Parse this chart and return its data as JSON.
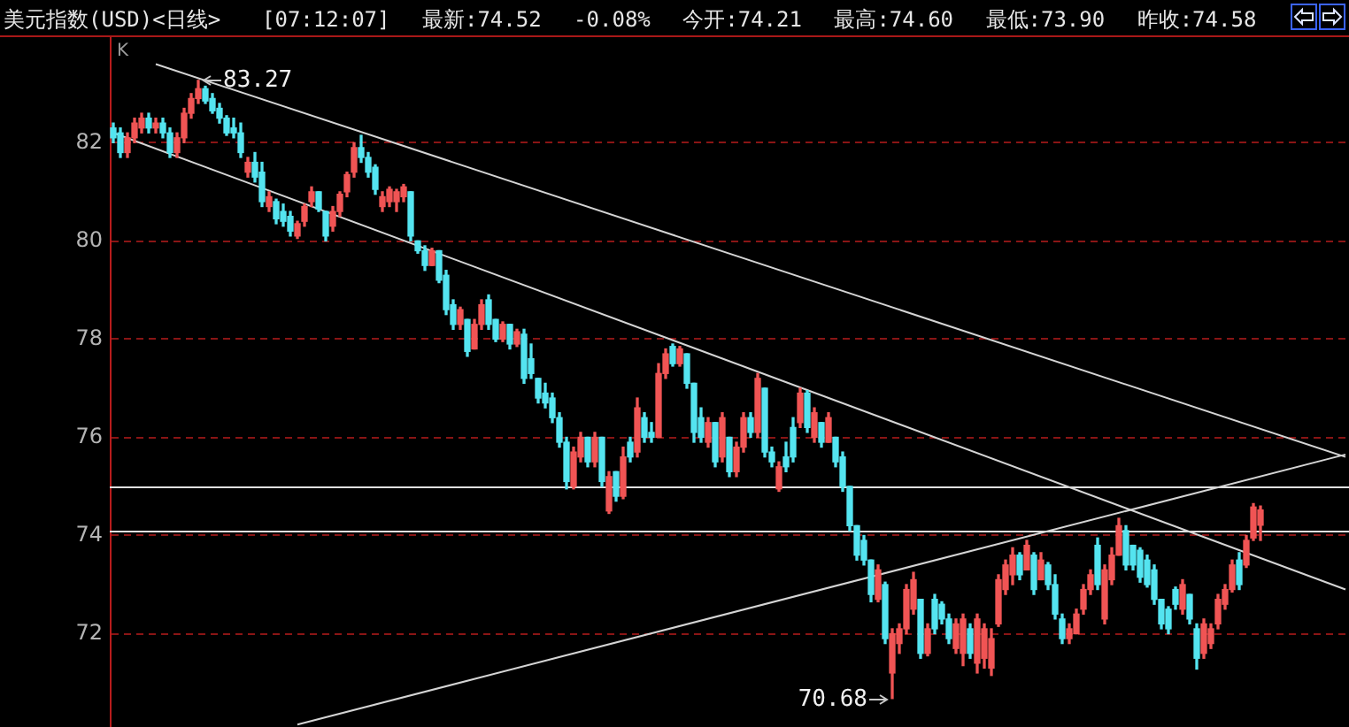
{
  "chart_data": {
    "type": "candlestick",
    "title": "美元指数(USD)<日线>",
    "subtitle": "[07:12:07] 最新:74.52 -0.08% 今开:74.21 最高:74.60 最低:73.90 昨收:74.58",
    "categories": [
      null,
      null,
      null,
      null,
      null,
      null,
      null,
      null,
      null,
      null,
      null,
      null,
      null,
      null,
      null,
      null,
      null,
      null,
      null,
      null,
      null,
      null,
      null,
      null,
      null,
      null,
      null,
      null,
      null,
      null,
      null,
      null,
      null,
      null,
      null,
      null,
      null,
      null,
      null,
      null,
      null,
      null,
      null,
      null,
      null,
      null,
      null,
      null,
      null,
      null,
      null,
      null,
      null,
      null,
      null,
      null,
      null,
      null,
      null,
      null,
      null,
      null,
      null,
      null,
      null,
      null,
      null,
      null,
      null,
      null,
      null,
      null,
      null,
      null,
      null,
      null,
      null,
      null,
      null,
      null,
      null,
      null,
      null,
      null,
      null,
      null,
      null,
      null,
      null,
      null,
      null,
      null,
      null,
      null,
      null,
      null,
      null,
      null,
      null,
      null,
      null,
      null,
      null,
      null,
      null,
      null,
      null,
      null,
      null,
      null,
      null,
      null,
      null,
      null,
      null,
      null,
      null,
      null,
      null,
      null,
      null,
      null,
      null,
      null,
      null,
      null,
      null,
      null,
      null,
      null,
      null,
      null,
      null,
      null,
      null,
      null,
      null,
      null,
      null,
      null,
      null,
      null,
      null,
      null,
      null,
      null,
      null,
      null,
      null,
      null,
      null,
      null,
      null,
      null,
      null,
      null,
      null,
      null,
      null,
      null,
      null,
      null,
      null,
      null,
      null,
      null,
      null,
      null,
      null,
      null,
      null,
      null,
      null,
      null,
      null
    ],
    "ohlc": [
      [
        82.3,
        82.4,
        82.0,
        82.1
      ],
      [
        82.2,
        82.3,
        81.7,
        81.8
      ],
      [
        81.8,
        82.2,
        81.7,
        82.1
      ],
      [
        82.1,
        82.5,
        82.0,
        82.4
      ],
      [
        82.3,
        82.6,
        82.2,
        82.5
      ],
      [
        82.5,
        82.6,
        82.2,
        82.3
      ],
      [
        82.3,
        82.5,
        82.2,
        82.4
      ],
      [
        82.4,
        82.5,
        82.1,
        82.2
      ],
      [
        82.2,
        82.3,
        81.7,
        81.8
      ],
      [
        81.8,
        82.2,
        81.7,
        82.1
      ],
      [
        82.1,
        82.7,
        82.0,
        82.6
      ],
      [
        82.6,
        83.0,
        82.5,
        82.9
      ],
      [
        82.9,
        83.27,
        82.8,
        83.1
      ],
      [
        83.1,
        83.15,
        82.8,
        82.85
      ],
      [
        82.9,
        83.0,
        82.6,
        82.65
      ],
      [
        82.7,
        82.8,
        82.4,
        82.5
      ],
      [
        82.5,
        82.55,
        82.15,
        82.2
      ],
      [
        82.3,
        82.5,
        82.1,
        82.2
      ],
      [
        82.2,
        82.4,
        81.7,
        81.8
      ],
      [
        81.4,
        81.7,
        81.3,
        81.6
      ],
      [
        81.6,
        81.8,
        81.2,
        81.3
      ],
      [
        81.4,
        81.6,
        80.7,
        80.8
      ],
      [
        80.7,
        81.0,
        80.6,
        80.9
      ],
      [
        80.8,
        80.85,
        80.35,
        80.45
      ],
      [
        80.6,
        80.75,
        80.3,
        80.4
      ],
      [
        80.5,
        80.6,
        80.1,
        80.2
      ],
      [
        80.1,
        80.4,
        80.05,
        80.35
      ],
      [
        80.4,
        80.75,
        80.3,
        80.7
      ],
      [
        80.8,
        81.1,
        80.7,
        81.0
      ],
      [
        81.0,
        81.0,
        80.6,
        80.65
      ],
      [
        80.6,
        80.6,
        80.0,
        80.1
      ],
      [
        80.3,
        80.7,
        80.2,
        80.6
      ],
      [
        80.6,
        81.0,
        80.5,
        80.95
      ],
      [
        81.0,
        81.4,
        80.9,
        81.35
      ],
      [
        81.4,
        82.0,
        81.3,
        81.9
      ],
      [
        81.9,
        82.15,
        81.6,
        81.7
      ],
      [
        81.7,
        81.8,
        81.3,
        81.4
      ],
      [
        81.5,
        81.55,
        80.95,
        81.05
      ],
      [
        80.7,
        81.0,
        80.6,
        80.9
      ],
      [
        80.8,
        81.1,
        80.7,
        81.05
      ],
      [
        80.8,
        81.05,
        80.6,
        81.0
      ],
      [
        80.9,
        81.15,
        80.8,
        81.1
      ],
      [
        81.0,
        81.0,
        80.0,
        80.1
      ],
      [
        80.0,
        80.0,
        79.75,
        79.8
      ],
      [
        79.8,
        79.9,
        79.4,
        79.5
      ],
      [
        79.5,
        79.85,
        79.5,
        79.8
      ],
      [
        79.8,
        79.8,
        79.15,
        79.2
      ],
      [
        79.3,
        79.4,
        78.5,
        78.6
      ],
      [
        78.7,
        78.8,
        78.2,
        78.3
      ],
      [
        78.3,
        78.65,
        78.2,
        78.6
      ],
      [
        78.4,
        78.4,
        77.65,
        77.75
      ],
      [
        77.8,
        78.4,
        77.8,
        78.3
      ],
      [
        78.3,
        78.8,
        78.2,
        78.7
      ],
      [
        78.8,
        78.9,
        78.2,
        78.3
      ],
      [
        78.4,
        78.4,
        77.95,
        78.0
      ],
      [
        78.0,
        78.35,
        77.95,
        78.3
      ],
      [
        78.3,
        78.3,
        77.8,
        77.9
      ],
      [
        77.9,
        78.2,
        77.85,
        78.15
      ],
      [
        78.1,
        78.2,
        77.1,
        77.2
      ],
      [
        77.6,
        77.9,
        77.2,
        77.3
      ],
      [
        77.2,
        77.2,
        76.7,
        76.8
      ],
      [
        76.9,
        77.1,
        76.6,
        76.7
      ],
      [
        76.8,
        76.9,
        76.3,
        76.4
      ],
      [
        76.4,
        76.5,
        75.8,
        75.9
      ],
      [
        75.9,
        76.0,
        74.95,
        75.1
      ],
      [
        75.0,
        75.8,
        74.95,
        75.7
      ],
      [
        75.6,
        76.1,
        75.5,
        76.0
      ],
      [
        76.0,
        76.0,
        75.4,
        75.5
      ],
      [
        75.5,
        76.1,
        75.4,
        76.0
      ],
      [
        76.0,
        76.0,
        75.0,
        75.1
      ],
      [
        74.5,
        75.3,
        74.45,
        75.2
      ],
      [
        75.3,
        75.3,
        74.7,
        74.8
      ],
      [
        74.8,
        75.8,
        74.75,
        75.6
      ],
      [
        75.9,
        76.0,
        75.5,
        75.6
      ],
      [
        75.7,
        76.8,
        75.6,
        76.6
      ],
      [
        76.4,
        76.5,
        75.9,
        76.0
      ],
      [
        76.1,
        76.3,
        75.9,
        76.0
      ],
      [
        76.0,
        77.5,
        76.0,
        77.3
      ],
      [
        77.3,
        77.8,
        77.2,
        77.7
      ],
      [
        77.85,
        77.9,
        77.45,
        77.5
      ],
      [
        77.5,
        77.85,
        77.45,
        77.8
      ],
      [
        77.7,
        77.7,
        77.0,
        77.1
      ],
      [
        77.1,
        77.1,
        75.9,
        76.1
      ],
      [
        76.4,
        76.6,
        75.9,
        76.0
      ],
      [
        75.9,
        76.4,
        75.8,
        76.3
      ],
      [
        76.3,
        76.3,
        75.4,
        75.5
      ],
      [
        75.6,
        76.5,
        75.5,
        76.4
      ],
      [
        76.0,
        76.0,
        75.2,
        75.3
      ],
      [
        75.3,
        75.9,
        75.2,
        75.8
      ],
      [
        75.8,
        76.5,
        75.7,
        76.4
      ],
      [
        76.4,
        76.5,
        76.0,
        76.1
      ],
      [
        76.1,
        77.3,
        76.0,
        77.2
      ],
      [
        77.0,
        77.0,
        75.6,
        75.7
      ],
      [
        75.7,
        75.8,
        75.4,
        75.5
      ],
      [
        74.95,
        75.5,
        74.9,
        75.4
      ],
      [
        75.6,
        75.9,
        75.3,
        75.4
      ],
      [
        76.2,
        76.4,
        75.5,
        75.6
      ],
      [
        76.3,
        77.0,
        76.2,
        76.9
      ],
      [
        76.9,
        76.95,
        76.1,
        76.2
      ],
      [
        76.0,
        76.6,
        75.9,
        76.5
      ],
      [
        76.3,
        76.3,
        75.8,
        75.9
      ],
      [
        75.9,
        76.5,
        75.9,
        76.4
      ],
      [
        76.0,
        76.0,
        75.4,
        75.5
      ],
      [
        75.6,
        75.7,
        74.9,
        75.0
      ],
      [
        75.0,
        75.0,
        74.1,
        74.2
      ],
      [
        74.2,
        74.2,
        73.5,
        73.6
      ],
      [
        73.9,
        74.0,
        73.4,
        73.5
      ],
      [
        73.5,
        73.5,
        72.65,
        72.8
      ],
      [
        72.7,
        73.4,
        72.65,
        73.3
      ],
      [
        73.0,
        73.05,
        71.8,
        71.9
      ],
      [
        71.2,
        72.1,
        70.68,
        72.0
      ],
      [
        71.8,
        72.2,
        71.6,
        72.1
      ],
      [
        72.1,
        73.0,
        72.0,
        72.9
      ],
      [
        72.5,
        73.25,
        72.4,
        73.1
      ],
      [
        72.7,
        72.7,
        71.5,
        71.6
      ],
      [
        71.6,
        72.2,
        71.55,
        72.1
      ],
      [
        72.7,
        72.8,
        72.0,
        72.1
      ],
      [
        72.6,
        72.65,
        72.2,
        72.3
      ],
      [
        72.3,
        72.4,
        71.8,
        71.9
      ],
      [
        71.7,
        72.3,
        71.6,
        72.2
      ],
      [
        71.6,
        72.4,
        71.35,
        72.3
      ],
      [
        72.1,
        72.2,
        71.5,
        71.6
      ],
      [
        71.4,
        72.4,
        71.2,
        72.3
      ],
      [
        71.5,
        72.2,
        71.3,
        72.1
      ],
      [
        71.3,
        72.1,
        71.15,
        71.9
      ],
      [
        72.2,
        73.2,
        72.15,
        73.1
      ],
      [
        72.9,
        73.5,
        72.8,
        73.4
      ],
      [
        73.2,
        73.75,
        73.0,
        73.6
      ],
      [
        73.6,
        73.65,
        73.1,
        73.2
      ],
      [
        73.3,
        73.9,
        73.3,
        73.8
      ],
      [
        73.6,
        73.65,
        72.8,
        72.9
      ],
      [
        73.1,
        73.65,
        73.1,
        73.5
      ],
      [
        73.4,
        73.45,
        72.9,
        73.0
      ],
      [
        73.0,
        73.2,
        72.3,
        72.4
      ],
      [
        72.3,
        72.4,
        71.8,
        71.9
      ],
      [
        71.9,
        72.2,
        71.8,
        72.1
      ],
      [
        72.0,
        72.5,
        72.0,
        72.4
      ],
      [
        72.5,
        73.0,
        72.4,
        72.9
      ],
      [
        72.9,
        73.3,
        72.8,
        73.2
      ],
      [
        73.8,
        73.95,
        72.9,
        73.0
      ],
      [
        72.3,
        73.4,
        72.2,
        73.3
      ],
      [
        73.1,
        73.75,
        73.0,
        73.6
      ],
      [
        73.6,
        74.35,
        73.6,
        74.2
      ],
      [
        74.1,
        74.2,
        73.3,
        73.4
      ],
      [
        73.8,
        73.8,
        73.3,
        73.4
      ],
      [
        73.7,
        73.75,
        73.05,
        73.15
      ],
      [
        73.5,
        73.6,
        72.95,
        73.0
      ],
      [
        73.3,
        73.4,
        72.6,
        72.7
      ],
      [
        72.7,
        72.7,
        72.1,
        72.2
      ],
      [
        72.5,
        72.55,
        72.0,
        72.1
      ],
      [
        72.9,
        72.95,
        72.5,
        72.6
      ],
      [
        72.5,
        73.1,
        72.4,
        73.0
      ],
      [
        72.8,
        72.8,
        72.2,
        72.3
      ],
      [
        72.1,
        72.2,
        71.28,
        71.5
      ],
      [
        71.6,
        72.3,
        71.5,
        72.2
      ],
      [
        71.8,
        72.2,
        71.7,
        72.1
      ],
      [
        72.2,
        72.8,
        72.1,
        72.7
      ],
      [
        72.6,
        73.0,
        72.5,
        72.9
      ],
      [
        72.9,
        73.5,
        72.85,
        73.4
      ],
      [
        73.5,
        73.65,
        72.9,
        73.0
      ],
      [
        73.4,
        74.0,
        73.35,
        73.9
      ],
      [
        73.95,
        74.65,
        73.9,
        74.58
      ],
      [
        74.21,
        74.6,
        73.9,
        74.52
      ],
      null,
      null,
      null,
      null,
      null,
      null,
      null,
      null,
      null,
      null,
      null,
      null
    ],
    "colors": [
      "#54e4f0",
      "#54e4f0",
      "#f05454",
      "#f05454",
      "#f05454",
      "#54e4f0",
      "#f05454",
      "#54e4f0",
      "#54e4f0",
      "#f05454",
      "#f05454",
      "#f05454",
      "#f05454",
      "#54e4f0",
      "#54e4f0",
      "#54e4f0",
      "#54e4f0",
      "#54e4f0",
      "#54e4f0",
      "#f05454",
      "#54e4f0",
      "#54e4f0",
      "#f05454",
      "#54e4f0",
      "#54e4f0",
      "#54e4f0",
      "#f05454",
      "#f05454",
      "#f05454",
      "#54e4f0",
      "#54e4f0",
      "#f05454",
      "#f05454",
      "#f05454",
      "#f05454",
      "#54e4f0",
      "#54e4f0",
      "#54e4f0",
      "#f05454",
      "#f05454",
      "#f05454",
      "#f05454",
      "#54e4f0",
      "#54e4f0",
      "#54e4f0",
      "#f05454",
      "#54e4f0",
      "#54e4f0",
      "#54e4f0",
      "#f05454",
      "#54e4f0",
      "#f05454",
      "#f05454",
      "#54e4f0",
      "#54e4f0",
      "#f05454",
      "#54e4f0",
      "#f05454",
      "#54e4f0",
      "#54e4f0",
      "#54e4f0",
      "#54e4f0",
      "#54e4f0",
      "#54e4f0",
      "#54e4f0",
      "#f05454",
      "#f05454",
      "#54e4f0",
      "#f05454",
      "#54e4f0",
      "#f05454",
      "#54e4f0",
      "#f05454",
      "#54e4f0",
      "#f05454",
      "#54e4f0",
      "#54e4f0",
      "#f05454",
      "#f05454",
      "#54e4f0",
      "#f05454",
      "#54e4f0",
      "#54e4f0",
      "#54e4f0",
      "#f05454",
      "#54e4f0",
      "#f05454",
      "#54e4f0",
      "#f05454",
      "#f05454",
      "#54e4f0",
      "#f05454",
      "#54e4f0",
      "#54e4f0",
      "#f05454",
      "#54e4f0",
      "#54e4f0",
      "#f05454",
      "#54e4f0",
      "#f05454",
      "#54e4f0",
      "#f05454",
      "#54e4f0",
      "#54e4f0",
      "#54e4f0",
      "#54e4f0",
      "#54e4f0",
      "#54e4f0",
      "#f05454",
      "#54e4f0",
      "#f05454",
      "#f05454",
      "#f05454",
      "#f05454",
      "#54e4f0",
      "#f05454",
      "#54e4f0",
      "#54e4f0",
      "#54e4f0",
      "#f05454",
      "#f05454",
      "#54e4f0",
      "#f05454",
      "#f05454",
      "#f05454",
      "#f05454",
      "#f05454",
      "#f05454",
      "#54e4f0",
      "#f05454",
      "#54e4f0",
      "#f05454",
      "#54e4f0",
      "#54e4f0",
      "#54e4f0",
      "#f05454",
      "#f05454",
      "#f05454",
      "#f05454",
      "#54e4f0",
      "#f05454",
      "#f05454",
      "#f05454",
      "#54e4f0",
      "#54e4f0",
      "#54e4f0",
      "#54e4f0",
      "#54e4f0",
      "#54e4f0",
      "#54e4f0",
      "#54e4f0",
      "#f05454",
      "#54e4f0",
      "#54e4f0",
      "#f05454",
      "#f05454",
      "#f05454",
      "#f05454",
      "#f05454",
      "#54e4f0",
      "#f05454",
      "#f05454",
      "#f05454",
      null,
      null,
      null,
      null,
      null,
      null,
      null,
      null,
      null,
      null,
      null,
      null
    ],
    "series": [
      {
        "type": "line",
        "color": "#d4d4d4",
        "values": [
          null,
          null,
          null,
          null,
          null,
          null,
          83.6,
          null,
          null,
          null,
          null,
          null,
          null,
          null,
          null,
          null,
          null,
          null,
          null,
          null,
          null,
          null,
          null,
          null,
          null,
          null,
          null,
          null,
          null,
          null,
          null,
          null,
          null,
          null,
          null,
          null,
          null,
          null,
          null,
          null,
          null,
          null,
          null,
          null,
          null,
          null,
          null,
          null,
          null,
          null,
          null,
          null,
          null,
          null,
          null,
          null,
          null,
          null,
          null,
          null,
          null,
          null,
          null,
          null,
          null,
          null,
          null,
          null,
          null,
          null,
          null,
          null,
          null,
          null,
          null,
          null,
          null,
          null,
          null,
          null,
          null,
          null,
          null,
          null,
          null,
          null,
          null,
          null,
          null,
          null,
          null,
          null,
          null,
          null,
          null,
          null,
          null,
          null,
          null,
          null,
          null,
          null,
          null,
          null,
          null,
          null,
          null,
          null,
          null,
          null,
          null,
          null,
          null,
          null,
          null,
          null,
          null,
          null,
          null,
          null,
          null,
          null,
          null,
          null,
          null,
          null,
          null,
          null,
          null,
          null,
          null,
          null,
          null,
          null,
          null,
          null,
          null,
          null,
          null,
          null,
          null,
          null,
          null,
          null,
          null,
          null,
          null,
          null,
          null,
          null,
          null,
          null,
          null,
          null,
          null,
          null,
          null,
          null,
          null,
          null,
          null,
          null,
          null,
          null,
          null,
          null,
          null,
          null,
          null,
          null,
          null,
          null,
          null,
          null,
          75.6
        ]
      },
      {
        "type": "line",
        "color": "#d4d4d4",
        "values": [
          82.2,
          null,
          null,
          null,
          null,
          null,
          null,
          null,
          null,
          null,
          null,
          null,
          null,
          null,
          null,
          null,
          null,
          null,
          null,
          null,
          null,
          null,
          null,
          null,
          null,
          null,
          null,
          null,
          null,
          null,
          null,
          null,
          null,
          null,
          null,
          null,
          null,
          null,
          null,
          null,
          null,
          null,
          null,
          null,
          null,
          null,
          null,
          null,
          null,
          null,
          null,
          null,
          null,
          null,
          null,
          null,
          null,
          null,
          null,
          null,
          null,
          null,
          null,
          null,
          null,
          null,
          null,
          null,
          null,
          null,
          null,
          null,
          null,
          null,
          null,
          null,
          null,
          null,
          null,
          null,
          null,
          null,
          null,
          null,
          null,
          null,
          null,
          null,
          null,
          null,
          null,
          null,
          null,
          null,
          null,
          null,
          null,
          null,
          null,
          null,
          null,
          null,
          null,
          null,
          null,
          null,
          null,
          null,
          null,
          null,
          null,
          null,
          null,
          null,
          null,
          null,
          null,
          null,
          null,
          null,
          null,
          null,
          null,
          null,
          null,
          null,
          null,
          null,
          null,
          null,
          null,
          null,
          null,
          null,
          null,
          null,
          null,
          null,
          null,
          null,
          null,
          null,
          null,
          null,
          null,
          null,
          null,
          null,
          null,
          null,
          null,
          null,
          null,
          null,
          null,
          null,
          null,
          null,
          null,
          null,
          null,
          null,
          null,
          null,
          null,
          null,
          null,
          null,
          null,
          null,
          null,
          null,
          null,
          null,
          72.9
        ]
      },
      {
        "type": "line",
        "color": "#d4d4d4",
        "values": [
          null,
          null,
          null,
          null,
          null,
          null,
          null,
          null,
          null,
          null,
          null,
          null,
          null,
          null,
          null,
          null,
          null,
          null,
          null,
          null,
          null,
          null,
          null,
          null,
          null,
          null,
          70.15,
          null,
          null,
          null,
          null,
          null,
          null,
          null,
          null,
          null,
          null,
          null,
          null,
          null,
          null,
          null,
          null,
          null,
          null,
          null,
          null,
          null,
          null,
          null,
          null,
          null,
          null,
          null,
          null,
          null,
          null,
          null,
          null,
          null,
          null,
          null,
          null,
          null,
          null,
          null,
          null,
          null,
          null,
          null,
          null,
          null,
          null,
          null,
          null,
          null,
          null,
          null,
          null,
          null,
          null,
          null,
          null,
          null,
          null,
          null,
          null,
          null,
          null,
          null,
          null,
          null,
          null,
          null,
          null,
          null,
          null,
          null,
          null,
          null,
          null,
          null,
          null,
          null,
          null,
          null,
          null,
          null,
          null,
          null,
          null,
          null,
          null,
          null,
          null,
          null,
          null,
          null,
          null,
          null,
          null,
          null,
          null,
          null,
          null,
          null,
          null,
          null,
          null,
          null,
          null,
          null,
          null,
          null,
          null,
          null,
          null,
          null,
          null,
          null,
          null,
          null,
          null,
          null,
          null,
          null,
          null,
          null,
          null,
          null,
          null,
          null,
          null,
          null,
          null,
          null,
          null,
          null,
          null,
          null,
          null,
          null,
          null,
          null,
          null,
          null,
          null,
          null,
          null,
          null,
          null,
          null,
          null,
          null,
          75.65
        ]
      }
    ],
    "ylim": [
      70.1,
      84.15
    ],
    "yticks": [
      72,
      74,
      76,
      78,
      80,
      82
    ],
    "grid": "y",
    "tick_labels": "y",
    "ref_lines": [
      {
        "axis": "y",
        "value": 75.0,
        "color": "#e0e0e0"
      },
      {
        "axis": "y",
        "value": 74.1,
        "color": "#e0e0e0"
      }
    ],
    "annotations": [
      "K",
      "83.27",
      "70.68"
    ]
  }
}
